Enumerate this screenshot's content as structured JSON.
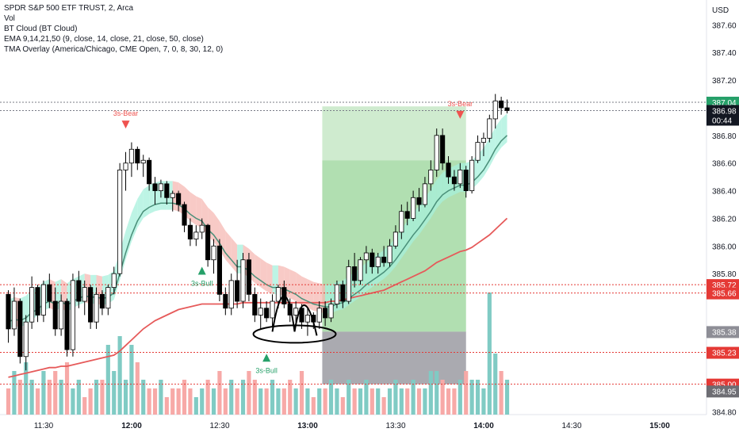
{
  "header": {
    "line1": "SPDR S&P 500 ETF TRUST, 2, Arca",
    "line2": "Vol",
    "line3": "BT Cloud (BT Cloud)",
    "line4": "EMA 9,14,21,50 (9, close, 14, close, 21, close, 50, close)",
    "line5": "TMA Overlay (America/Chicago, CME Open, 7, 0, 8, 30, 12, 0)"
  },
  "colors": {
    "bull": "#ffffff",
    "bear": "#000000",
    "vol_up": "#80cbc4",
    "vol_down": "#f7a9a7",
    "cloud_bull": "#a7f0dc",
    "cloud_bear": "#f5b8b3",
    "ema_fast": "#4a8f79",
    "ema_slow": "#e65a5a",
    "target_zone": "#a8dba8",
    "stop_zone": "#8e8e96",
    "level_red": "#e53935",
    "signal_bull": "#26a069",
    "signal_bear": "#ef5350"
  },
  "chart_data": {
    "type": "candlestick",
    "ticker": "SPDR S&P 500 ETF TRUST",
    "interval": "2",
    "exchange": "Arca",
    "currency": "USD",
    "price_ylim": [
      384.78,
      387.78
    ],
    "price_ticks": [
      "387.60",
      "387.40",
      "387.20",
      "386.80",
      "386.60",
      "386.40",
      "386.20",
      "386.00",
      "385.80",
      "384.80"
    ],
    "time_ticks": [
      "11:30",
      "12:00",
      "12:30",
      "13:00",
      "13:30",
      "14:00",
      "14:30",
      "15:00"
    ],
    "time_tick_hours": [
      11.5,
      12.0,
      12.5,
      13.0,
      13.5,
      14.0,
      14.5,
      15.0
    ],
    "x_start_hour": 11.283,
    "bar_minutes": 2,
    "candles": [
      [
        385.65,
        385.68,
        385.3,
        385.4
      ],
      [
        385.4,
        385.7,
        385.35,
        385.6
      ],
      [
        385.6,
        385.62,
        385.15,
        385.2
      ],
      [
        385.2,
        385.5,
        385.1,
        385.45
      ],
      [
        385.45,
        385.78,
        385.4,
        385.7
      ],
      [
        385.7,
        385.72,
        385.45,
        385.5
      ],
      [
        385.5,
        385.75,
        385.45,
        385.72
      ],
      [
        385.72,
        385.8,
        385.55,
        385.6
      ],
      [
        385.6,
        385.7,
        385.35,
        385.4
      ],
      [
        385.4,
        385.65,
        385.35,
        385.6
      ],
      [
        385.6,
        385.62,
        385.2,
        385.25
      ],
      [
        385.25,
        385.8,
        385.2,
        385.75
      ],
      [
        385.75,
        385.82,
        385.55,
        385.6
      ],
      [
        385.6,
        385.75,
        385.5,
        385.7
      ],
      [
        385.7,
        385.72,
        385.4,
        385.45
      ],
      [
        385.45,
        385.7,
        385.4,
        385.65
      ],
      [
        385.65,
        385.68,
        385.5,
        385.55
      ],
      [
        385.55,
        385.72,
        385.5,
        385.7
      ],
      [
        385.7,
        385.85,
        385.65,
        385.8
      ],
      [
        385.8,
        386.6,
        385.78,
        386.55
      ],
      [
        386.55,
        386.68,
        386.4,
        386.6
      ],
      [
        386.6,
        386.75,
        386.5,
        386.7
      ],
      [
        386.7,
        386.72,
        386.55,
        386.6
      ],
      [
        386.6,
        386.66,
        386.5,
        386.62
      ],
      [
        386.62,
        386.64,
        386.4,
        386.45
      ],
      [
        386.45,
        386.5,
        386.3,
        386.4
      ],
      [
        386.4,
        386.48,
        386.35,
        386.45
      ],
      [
        386.45,
        386.47,
        386.3,
        386.35
      ],
      [
        386.35,
        386.4,
        386.25,
        386.38
      ],
      [
        386.38,
        386.4,
        386.25,
        386.3
      ],
      [
        386.3,
        386.32,
        386.1,
        386.15
      ],
      [
        386.15,
        386.2,
        386.0,
        386.05
      ],
      [
        386.05,
        386.15,
        386.0,
        386.1
      ],
      [
        386.1,
        386.2,
        386.05,
        386.15
      ],
      [
        386.15,
        386.16,
        385.85,
        385.9
      ],
      [
        385.9,
        386.05,
        385.8,
        386.0
      ],
      [
        386.0,
        386.05,
        385.6,
        385.65
      ],
      [
        385.65,
        385.7,
        385.5,
        385.55
      ],
      [
        385.55,
        385.8,
        385.5,
        385.75
      ],
      [
        385.75,
        385.9,
        385.55,
        385.6
      ],
      [
        385.6,
        385.95,
        385.55,
        385.9
      ],
      [
        385.9,
        385.95,
        385.6,
        385.65
      ],
      [
        385.65,
        385.7,
        385.45,
        385.5
      ],
      [
        385.5,
        385.62,
        385.4,
        385.55
      ],
      [
        385.55,
        385.6,
        385.45,
        385.48
      ],
      [
        385.48,
        385.65,
        385.42,
        385.6
      ],
      [
        385.6,
        385.72,
        385.55,
        385.7
      ],
      [
        385.7,
        385.75,
        385.55,
        385.58
      ],
      [
        385.58,
        385.62,
        385.45,
        385.5
      ],
      [
        385.5,
        385.6,
        385.45,
        385.55
      ],
      [
        385.55,
        385.58,
        385.4,
        385.45
      ],
      [
        385.45,
        385.55,
        385.35,
        385.5
      ],
      [
        385.5,
        385.52,
        385.4,
        385.45
      ],
      [
        385.45,
        385.6,
        385.4,
        385.55
      ],
      [
        385.55,
        385.6,
        385.42,
        385.48
      ],
      [
        385.48,
        385.62,
        385.45,
        385.58
      ],
      [
        385.58,
        385.75,
        385.55,
        385.72
      ],
      [
        385.72,
        385.75,
        385.55,
        385.6
      ],
      [
        385.6,
        385.9,
        385.58,
        385.85
      ],
      [
        385.85,
        385.95,
        385.7,
        385.75
      ],
      [
        385.75,
        385.92,
        385.72,
        385.9
      ],
      [
        385.9,
        386.0,
        385.8,
        385.95
      ],
      [
        385.95,
        385.98,
        385.8,
        385.85
      ],
      [
        385.85,
        385.95,
        385.8,
        385.92
      ],
      [
        385.92,
        386.0,
        385.85,
        385.88
      ],
      [
        385.88,
        386.05,
        385.85,
        386.0
      ],
      [
        386.0,
        386.15,
        385.98,
        386.1
      ],
      [
        386.1,
        386.3,
        386.05,
        386.25
      ],
      [
        386.25,
        386.32,
        386.15,
        386.2
      ],
      [
        386.2,
        386.4,
        386.18,
        386.35
      ],
      [
        386.35,
        386.42,
        386.25,
        386.3
      ],
      [
        386.3,
        386.5,
        386.28,
        386.45
      ],
      [
        386.45,
        386.62,
        386.4,
        386.55
      ],
      [
        386.55,
        386.85,
        386.5,
        386.8
      ],
      [
        386.8,
        386.85,
        386.55,
        386.6
      ],
      [
        386.6,
        386.65,
        386.45,
        386.5
      ],
      [
        386.5,
        386.55,
        386.4,
        386.45
      ],
      [
        386.45,
        386.6,
        386.42,
        386.55
      ],
      [
        386.55,
        386.58,
        386.35,
        386.4
      ],
      [
        386.4,
        386.65,
        386.38,
        386.62
      ],
      [
        386.62,
        386.8,
        386.6,
        386.75
      ],
      [
        386.75,
        386.82,
        386.65,
        386.78
      ],
      [
        386.78,
        386.95,
        386.75,
        386.92
      ],
      [
        386.92,
        387.1,
        386.85,
        387.05
      ],
      [
        387.05,
        387.08,
        386.95,
        387.0
      ],
      [
        387.0,
        387.06,
        386.96,
        386.98
      ]
    ],
    "volume": [
      [
        3,
        "down"
      ],
      [
        5,
        "up"
      ],
      [
        4,
        "down"
      ],
      [
        6,
        "up"
      ],
      [
        4,
        "up"
      ],
      [
        3,
        "down"
      ],
      [
        5,
        "up"
      ],
      [
        4,
        "down"
      ],
      [
        5,
        "down"
      ],
      [
        4,
        "up"
      ],
      [
        6,
        "down"
      ],
      [
        3,
        "up"
      ],
      [
        4,
        "up"
      ],
      [
        2,
        "down"
      ],
      [
        3,
        "down"
      ],
      [
        4,
        "up"
      ],
      [
        4,
        "down"
      ],
      [
        8,
        "up"
      ],
      [
        5,
        "up"
      ],
      [
        9,
        "up"
      ],
      [
        4,
        "up"
      ],
      [
        8,
        "up"
      ],
      [
        6,
        "down"
      ],
      [
        4,
        "up"
      ],
      [
        3,
        "down"
      ],
      [
        3,
        "down"
      ],
      [
        4,
        "up"
      ],
      [
        2,
        "down"
      ],
      [
        3,
        "down"
      ],
      [
        3,
        "down"
      ],
      [
        4,
        "down"
      ],
      [
        3,
        "down"
      ],
      [
        2,
        "up"
      ],
      [
        3,
        "up"
      ],
      [
        4,
        "down"
      ],
      [
        3,
        "up"
      ],
      [
        5,
        "down"
      ],
      [
        3,
        "down"
      ],
      [
        4,
        "up"
      ],
      [
        3,
        "down"
      ],
      [
        4,
        "up"
      ],
      [
        5,
        "down"
      ],
      [
        4,
        "down"
      ],
      [
        3,
        "up"
      ],
      [
        3,
        "down"
      ],
      [
        4,
        "up"
      ],
      [
        3,
        "up"
      ],
      [
        3,
        "down"
      ],
      [
        4,
        "down"
      ],
      [
        3,
        "up"
      ],
      [
        5,
        "down"
      ],
      [
        3,
        "up"
      ],
      [
        2,
        "down"
      ],
      [
        3,
        "up"
      ],
      [
        3,
        "down"
      ],
      [
        4,
        "up"
      ],
      [
        3,
        "up"
      ],
      [
        2,
        "down"
      ],
      [
        4,
        "up"
      ],
      [
        3,
        "down"
      ],
      [
        3,
        "up"
      ],
      [
        4,
        "up"
      ],
      [
        3,
        "down"
      ],
      [
        3,
        "up"
      ],
      [
        2,
        "down"
      ],
      [
        3,
        "up"
      ],
      [
        4,
        "up"
      ],
      [
        3,
        "up"
      ],
      [
        3,
        "down"
      ],
      [
        4,
        "up"
      ],
      [
        3,
        "down"
      ],
      [
        3,
        "up"
      ],
      [
        5,
        "up"
      ],
      [
        5,
        "up"
      ],
      [
        4,
        "down"
      ],
      [
        3,
        "down"
      ],
      [
        3,
        "down"
      ],
      [
        4,
        "up"
      ],
      [
        5,
        "down"
      ],
      [
        4,
        "up"
      ],
      [
        4,
        "up"
      ],
      [
        3,
        "up"
      ],
      [
        14,
        "up"
      ],
      [
        7,
        "up"
      ],
      [
        5,
        "down"
      ],
      [
        4,
        "up"
      ]
    ],
    "ema_fast": [
      385.45,
      385.47,
      385.46,
      385.48,
      385.52,
      385.54,
      385.58,
      385.6,
      385.58,
      385.6,
      385.57,
      385.6,
      385.62,
      385.64,
      385.63,
      385.63,
      385.62,
      385.63,
      385.66,
      385.8,
      385.95,
      386.08,
      386.18,
      386.25,
      386.28,
      386.3,
      386.31,
      386.31,
      386.31,
      386.3,
      386.27,
      386.23,
      386.2,
      386.18,
      386.12,
      386.08,
      386.02,
      385.95,
      385.9,
      385.85,
      385.85,
      385.82,
      385.78,
      385.75,
      385.72,
      385.7,
      385.7,
      385.69,
      385.67,
      385.65,
      385.62,
      385.6,
      385.58,
      385.57,
      385.56,
      385.56,
      385.58,
      385.59,
      385.62,
      385.65,
      385.68,
      385.72,
      385.75,
      385.78,
      385.81,
      385.85,
      385.9,
      385.96,
      386.02,
      386.08,
      386.13,
      386.19,
      386.25,
      386.32,
      386.37,
      386.4,
      386.42,
      386.44,
      386.44,
      386.46,
      386.5,
      386.55,
      386.62,
      386.7,
      386.76,
      386.8
    ],
    "ema_slow": [
      385.05,
      385.06,
      385.07,
      385.08,
      385.09,
      385.1,
      385.11,
      385.12,
      385.12,
      385.13,
      385.13,
      385.14,
      385.15,
      385.16,
      385.17,
      385.18,
      385.19,
      385.2,
      385.21,
      385.24,
      385.28,
      385.32,
      385.36,
      385.4,
      385.43,
      385.46,
      385.48,
      385.5,
      385.52,
      385.54,
      385.55,
      385.56,
      385.57,
      385.58,
      385.58,
      385.58,
      385.58,
      385.58,
      385.58,
      385.58,
      385.59,
      385.59,
      385.59,
      385.59,
      385.59,
      385.59,
      385.59,
      385.59,
      385.59,
      385.59,
      385.59,
      385.59,
      385.59,
      385.59,
      385.59,
      385.6,
      385.6,
      385.61,
      385.62,
      385.63,
      385.64,
      385.65,
      385.66,
      385.67,
      385.68,
      385.7,
      385.72,
      385.74,
      385.76,
      385.78,
      385.8,
      385.82,
      385.85,
      385.88,
      385.9,
      385.92,
      385.94,
      385.96,
      385.97,
      385.99,
      386.02,
      386.05,
      386.08,
      386.12,
      386.16,
      386.2
    ],
    "cloud_offset": 0.16,
    "trade": {
      "target_top": 387.01,
      "entry_upper": 386.62,
      "entry": 385.38,
      "stop_bottom": 385.0,
      "start_index": 54,
      "end_index": 78
    },
    "levels": [
      {
        "price": 387.04,
        "label": "387.04",
        "style": "dotted-gray",
        "tag_color": "#26a069"
      },
      {
        "price": 386.98,
        "label": "386.98",
        "sub": "00:44",
        "style": "dotted-gray",
        "tag_color": "#131722"
      },
      {
        "price": 385.72,
        "label": "385.72",
        "style": "dotted-red",
        "tag_color": "#e53935"
      },
      {
        "price": 385.66,
        "label": "385.66",
        "style": "dotted-red",
        "tag_color": "#e53935"
      },
      {
        "price": 385.38,
        "label": "385.38",
        "style": "none",
        "tag_color": "#8e8e96"
      },
      {
        "price": 385.23,
        "label": "385.23",
        "style": "dotted-red",
        "tag_color": "#e53935"
      },
      {
        "price": 385.0,
        "label": "385.00",
        "style": "dotted-red",
        "tag_color": "#e53935"
      },
      {
        "price": 384.95,
        "label": "384.95",
        "style": "none",
        "tag_color": "#6d6d73"
      }
    ],
    "signals": [
      {
        "text": "3s-Bear",
        "index": 20,
        "price": 386.85,
        "dir": "bear"
      },
      {
        "text": "3s-Bull",
        "index": 33,
        "price": 385.85,
        "dir": "bull"
      },
      {
        "text": "3s-Bull",
        "index": 44,
        "price": 385.22,
        "dir": "bull"
      },
      {
        "text": "3s-Bear",
        "index": 77,
        "price": 386.92,
        "dir": "bear"
      }
    ]
  }
}
